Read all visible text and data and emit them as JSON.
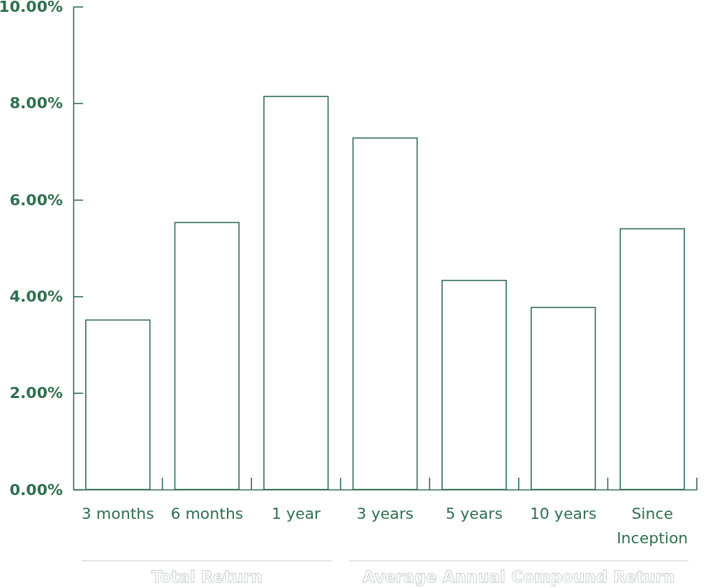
{
  "chart_data": {
    "type": "bar",
    "categories": [
      "3 months",
      "6 months",
      "1 year",
      "3 years",
      "5 years",
      "10 years",
      "Since Inception"
    ],
    "values": [
      3.51,
      5.53,
      8.14,
      7.28,
      4.33,
      3.77,
      5.4
    ],
    "color": "#2e6b4e",
    "ylim": [
      0,
      10
    ],
    "yticks": [
      {
        "value": 0,
        "label": "0.00%"
      },
      {
        "value": 2,
        "label": "2.00%"
      },
      {
        "value": 4,
        "label": "4.00%"
      },
      {
        "value": 6,
        "label": "6.00%"
      },
      {
        "value": 8,
        "label": "8.00%"
      },
      {
        "value": 10,
        "label": "10.00%"
      }
    ],
    "annotations": [
      "Total Return",
      "Average Annual Compound Return"
    ]
  }
}
